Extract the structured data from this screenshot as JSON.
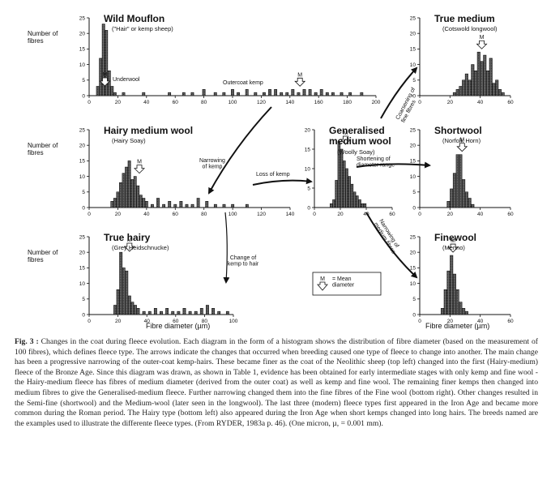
{
  "figure": {
    "panels": [
      {
        "id": "wild-mouflon",
        "title": "Wild Mouflon",
        "subtitle": "(\"Hair\" or kemp sheep)",
        "annotations": [
          "Underwool",
          "Outercoat kemp"
        ]
      },
      {
        "id": "true-medium",
        "title": "True medium",
        "subtitle": "(Cotswold longwool)",
        "annotations": []
      },
      {
        "id": "hairy-medium-wool",
        "title": "Hairy medium wool",
        "subtitle": "(Hairy Soay)",
        "annotations": []
      },
      {
        "id": "generalised-medium-wool",
        "title": "Generalised\nmedium wool",
        "subtitle": "(Woolly Soay)",
        "annotations": []
      },
      {
        "id": "shortwool",
        "title": "Shortwool",
        "subtitle": "(Norfolk Horn)",
        "annotations": []
      },
      {
        "id": "true-hairy",
        "title": "True hairy",
        "subtitle": "(Grey Heidschnucke)",
        "annotations": []
      },
      {
        "id": "finewool",
        "title": "Finewool",
        "subtitle": "(Merino)",
        "annotations": []
      }
    ],
    "y_label": "Number of\nfibres",
    "x_label": "Fibre diameter (µm)",
    "arrows": [
      "Coarsening of\nfine fibres",
      "Narrowing\nof kemp",
      "Loss of kemp",
      "Shortening of\ndiameter range",
      "Narrowing of\nmedium fibres",
      "Change of\nkemp to hair"
    ],
    "legend": {
      "symbol": "M",
      "text": "= Mean\ndiameter"
    }
  },
  "chart_data": [
    {
      "type": "bar",
      "panel": "wild-mouflon",
      "xlim": [
        0,
        200
      ],
      "ylim": [
        0,
        25
      ],
      "xticks": [
        0,
        20,
        40,
        60,
        80,
        100,
        120,
        140,
        160,
        180,
        200
      ],
      "yticks": [
        0,
        5,
        10,
        15,
        20,
        25
      ],
      "mean": 147,
      "mean2": 11,
      "x": [
        6,
        8,
        10,
        12,
        14,
        16,
        18,
        24,
        38,
        56,
        66,
        72,
        80,
        88,
        94,
        100,
        104,
        110,
        116,
        122,
        126,
        130,
        134,
        138,
        142,
        146,
        150,
        154,
        158,
        162,
        166,
        170,
        176,
        182,
        190
      ],
      "values": [
        3,
        12,
        23,
        21,
        8,
        3,
        1,
        1,
        1,
        1,
        1,
        1,
        2,
        1,
        1,
        2,
        1,
        2,
        1,
        1,
        2,
        2,
        1,
        1,
        2,
        1,
        2,
        2,
        1,
        2,
        1,
        1,
        1,
        1,
        1
      ]
    },
    {
      "type": "bar",
      "panel": "true-medium",
      "xlim": [
        0,
        60
      ],
      "ylim": [
        0,
        25
      ],
      "xticks": [
        0,
        20,
        40,
        60
      ],
      "yticks": [
        0,
        5,
        10,
        15,
        20,
        25
      ],
      "mean": 41,
      "x": [
        23,
        25,
        27,
        29,
        31,
        33,
        35,
        37,
        39,
        41,
        43,
        45,
        47,
        49,
        51,
        53,
        55
      ],
      "values": [
        1,
        2,
        3,
        5,
        7,
        5,
        10,
        8,
        14,
        11,
        13,
        8,
        12,
        4,
        5,
        2,
        1
      ]
    },
    {
      "type": "bar",
      "panel": "hairy-medium-wool",
      "xlim": [
        0,
        140
      ],
      "ylim": [
        0,
        25
      ],
      "xticks": [
        0,
        20,
        40,
        60,
        80,
        100,
        120,
        140
      ],
      "yticks": [
        0,
        5,
        10,
        15,
        20,
        25
      ],
      "mean": 35,
      "x": [
        16,
        18,
        20,
        22,
        24,
        26,
        28,
        30,
        32,
        34,
        36,
        38,
        40,
        44,
        48,
        52,
        56,
        60,
        64,
        68,
        72,
        76,
        82,
        88,
        94,
        100,
        110
      ],
      "values": [
        2,
        3,
        5,
        8,
        11,
        13,
        15,
        9,
        10,
        7,
        4,
        3,
        2,
        1,
        3,
        1,
        2,
        1,
        2,
        1,
        1,
        3,
        2,
        1,
        1,
        1,
        1
      ]
    },
    {
      "type": "bar",
      "panel": "generalised-medium-wool",
      "xlim": [
        0,
        60
      ],
      "ylim": [
        0,
        20
      ],
      "xticks": [
        0,
        20,
        40,
        60
      ],
      "yticks": [
        0,
        5,
        10,
        15,
        20
      ],
      "mean": 24,
      "x": [
        13,
        15,
        17,
        19,
        21,
        23,
        25,
        27,
        29,
        31,
        33,
        35,
        37,
        39
      ],
      "values": [
        1,
        2,
        7,
        17,
        15,
        12,
        10,
        8,
        6,
        4,
        3,
        2,
        1,
        1
      ]
    },
    {
      "type": "bar",
      "panel": "shortwool",
      "xlim": [
        0,
        60
      ],
      "ylim": [
        0,
        25
      ],
      "xticks": [
        0,
        20,
        40,
        60
      ],
      "yticks": [
        0,
        5,
        10,
        15,
        20,
        25
      ],
      "mean": 28,
      "x": [
        19,
        21,
        23,
        25,
        27,
        29,
        31,
        33,
        35
      ],
      "values": [
        2,
        6,
        11,
        17,
        17,
        9,
        5,
        3,
        1
      ]
    },
    {
      "type": "bar",
      "panel": "true-hairy",
      "xlim": [
        0,
        100
      ],
      "ylim": [
        0,
        25
      ],
      "xticks": [
        0,
        20,
        40,
        60,
        80,
        100
      ],
      "yticks": [
        0,
        5,
        10,
        15,
        20,
        25
      ],
      "mean": 28,
      "x": [
        18,
        20,
        22,
        24,
        26,
        28,
        30,
        32,
        34,
        38,
        42,
        46,
        50,
        54,
        58,
        62,
        66,
        70,
        74,
        78,
        82,
        86,
        90,
        96
      ],
      "values": [
        3,
        8,
        20,
        15,
        14,
        6,
        4,
        3,
        2,
        1,
        1,
        2,
        1,
        2,
        1,
        1,
        2,
        1,
        1,
        2,
        3,
        2,
        1,
        1
      ]
    },
    {
      "type": "bar",
      "panel": "finewool",
      "xlim": [
        0,
        60
      ],
      "ylim": [
        0,
        25
      ],
      "xticks": [
        0,
        20,
        40,
        60
      ],
      "yticks": [
        0,
        5,
        10,
        15,
        20,
        25
      ],
      "mean": 22,
      "x": [
        15,
        17,
        19,
        21,
        23,
        25,
        27,
        29,
        31
      ],
      "values": [
        2,
        8,
        14,
        19,
        13,
        8,
        4,
        2,
        1
      ]
    }
  ],
  "caption": {
    "label": "Fig. 3 :",
    "text": "Changes in the coat during fleece evolution. Each diagram in the form of a histogram shows the distribution of fibre diameter (based on the measurement of 100 fibres), which defines fleece type. The arrows indicate the changes that occurred when breeding caused one type of fleece to change into another. The main change has been a progressive narrowing of the outer-coat kemp-hairs. These became finer as the coat of the Neolithic sheep (top left) changed into the first (Hairy-medium) fleece of the Bronze Age. Since this diagram was drawn, as shown in Table 1, evidence has been obtained for early intermediate stages with only kemp and fine wool - the Hairy-medium fleece has fibres of medium diameter (derived from the outer coat) as well as kemp and fine wool. The remaining finer kemps then changed into medium fibres to give the Generalised-medium fleece. Further narrowing changed them into the fine fibres of the Fine wool (bottom right). Other changes resulted in the Semi-fine (shortwool) and the Medium-wool (later seen in the longwool). The last three (modern) fleece types first appeared in the Iron Age and became more common during the Roman period. The Hairy type (bottom left) also appeared during the Iron Age when short kemps changed into long hairs. The breeds named are the examples used to illustrate the differente fleece types. (From RYDER, 1983a p. 46). (One micron, µ, = 0.001 mm)."
  }
}
